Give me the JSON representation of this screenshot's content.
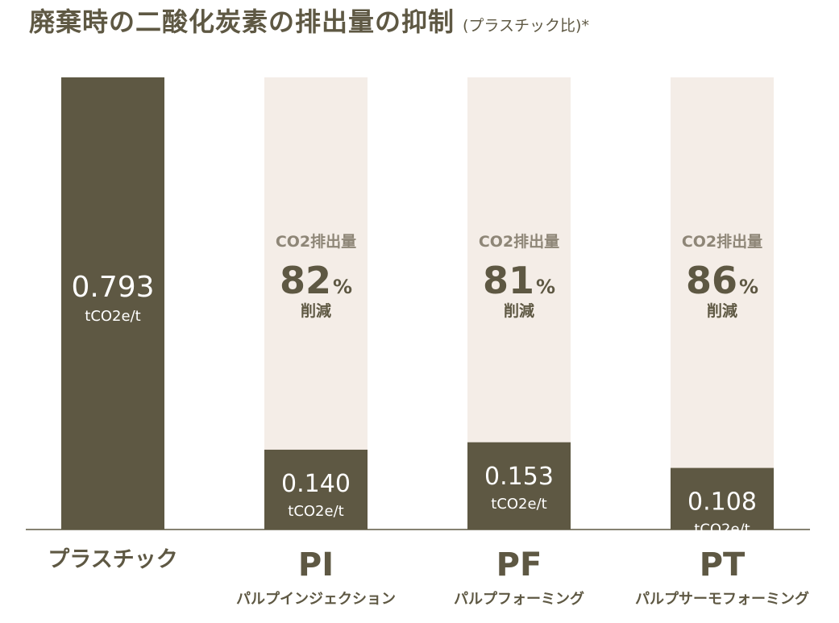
{
  "title": "廃棄時の二酸化炭素の排出量の抑制",
  "title_note": "(プラスチック比)*",
  "colors": {
    "bar": "#5e5843",
    "track": "#f4ede7",
    "text_light": "#ffffff",
    "reduction_label": "#8e8677",
    "reduction_value": "#5e5843"
  },
  "chart_data": {
    "type": "bar",
    "title": "廃棄時の二酸化炭素の排出量の抑制",
    "subtitle": "(プラスチック比)*",
    "categories": [
      "プラスチック",
      "PI",
      "PF",
      "PT"
    ],
    "sublabels": [
      "",
      "パルプインジェクション",
      "パルプフォーミング",
      "パルプサーモフォーミング"
    ],
    "values": [
      0.793,
      0.14,
      0.153,
      0.108
    ],
    "value_labels": [
      "0.793",
      "0.140",
      "0.153",
      "0.108"
    ],
    "unit": "tCO2e/t",
    "reductions": [
      null,
      82,
      81,
      86
    ],
    "reduction_top_label": "CO2排出量",
    "reduction_unit": "%",
    "reduction_bottom_label": "削減",
    "ylim": [
      0,
      0.793
    ],
    "grid": false,
    "legend": "none"
  }
}
